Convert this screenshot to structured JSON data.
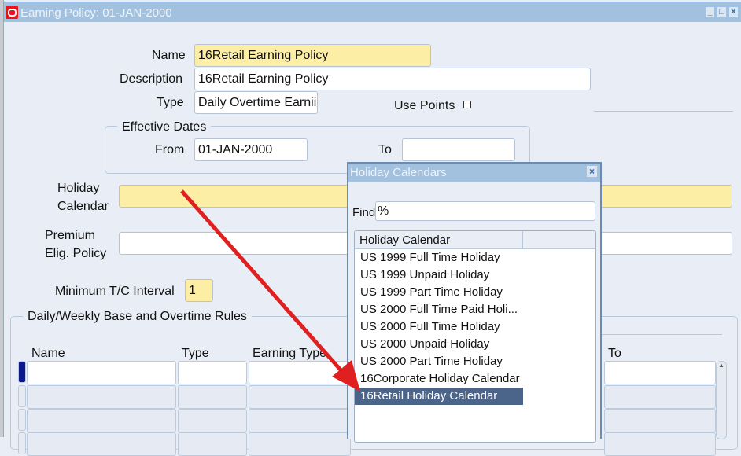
{
  "window": {
    "title": "Earning Policy: 01-JAN-2000",
    "controls": [
      "minimize",
      "maximize",
      "close"
    ]
  },
  "form": {
    "name_label": "Name",
    "name_value": "16Retail Earning Policy",
    "description_label": "Description",
    "description_value": "16Retail Earning Policy",
    "type_label": "Type",
    "type_value": "Daily Overtime Earnii",
    "use_points_label": "Use Points",
    "use_points_checked": false,
    "effective_dates_label": "Effective Dates",
    "from_label": "From",
    "from_value": "01-JAN-2000",
    "to_label": "To",
    "to_value": "",
    "holiday_label_1": "Holiday",
    "holiday_label_2": "Calendar",
    "holiday_value": "",
    "premium_label_1": "Premium",
    "premium_label_2": "Elig. Policy",
    "premium_value": "",
    "min_interval_label": "Minimum T/C Interval",
    "min_interval_value": "1"
  },
  "rules": {
    "group_label": "Daily/Weekly Base and Overtime Rules",
    "columns": {
      "name": "Name",
      "type": "Type",
      "earning_type": "Earning Type",
      "to": "To"
    }
  },
  "dialog": {
    "title": "Holiday Calendars",
    "find_label": "Find",
    "find_value": "%",
    "column_header": "Holiday Calendar",
    "items": [
      "US 1999 Full Time Holiday",
      "US 1999 Unpaid Holiday",
      "US 1999 Part Time Holiday",
      "US 2000 Full Time Paid Holi...",
      "US 2000 Full Time Holiday",
      "US 2000 Unpaid Holiday",
      "US 2000 Part Time Holiday",
      "16Corporate Holiday Calendar",
      "16Retail Holiday Calendar"
    ],
    "selected": "16Retail Holiday Calendar"
  },
  "colors": {
    "titlebar": "#a2c1df",
    "required_field": "#fdeea6",
    "selection": "#4b6489",
    "annotation_arrow": "#e02020"
  }
}
